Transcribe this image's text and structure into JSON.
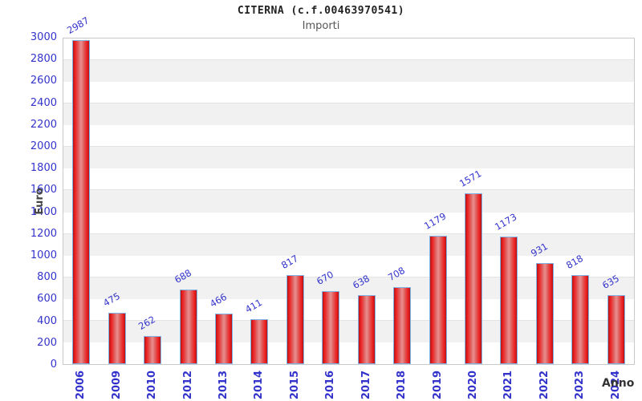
{
  "header": {
    "title": "CITERNA (c.f.00463970541)",
    "subtitle": "Importi"
  },
  "chart_data": {
    "type": "bar",
    "title": "CITERNA (c.f.00463970541)",
    "subtitle": "Importi",
    "xlabel": "Anno",
    "ylabel": "Euro",
    "categories": [
      "2006",
      "2009",
      "2010",
      "2012",
      "2013",
      "2014",
      "2015",
      "2016",
      "2017",
      "2018",
      "2019",
      "2020",
      "2021",
      "2022",
      "2023",
      "2024"
    ],
    "values": [
      2987,
      475,
      262,
      688,
      466,
      411,
      817,
      670,
      638,
      708,
      1179,
      1571,
      1173,
      931,
      818,
      635
    ],
    "ylim": [
      0,
      3000
    ],
    "ytick_step": 200,
    "grid": true,
    "legend": "none",
    "bar_color": "#e53935",
    "bar_border_color": "#7fb2e5",
    "text_color": "#3333cc",
    "band_color": "#f1f1f1"
  }
}
